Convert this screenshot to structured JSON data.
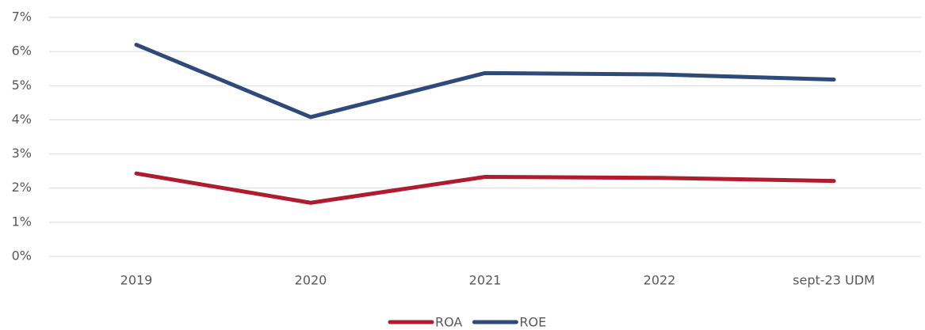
{
  "chart_data": {
    "type": "line",
    "categories": [
      "2019",
      "2020",
      "2021",
      "2022",
      "sept-23 UDM"
    ],
    "series": [
      {
        "name": "ROA",
        "color": "#b01c2e",
        "values": [
          2.43,
          1.57,
          2.33,
          2.3,
          2.21
        ]
      },
      {
        "name": "ROE",
        "color": "#2d4a7a",
        "values": [
          6.2,
          4.08,
          5.37,
          5.33,
          5.18
        ]
      }
    ],
    "ylim": [
      0,
      7
    ],
    "yticks": [
      {
        "value": 0,
        "label": "0%"
      },
      {
        "value": 1,
        "label": "1%"
      },
      {
        "value": 2,
        "label": "2%"
      },
      {
        "value": 3,
        "label": "3%"
      },
      {
        "value": 4,
        "label": "4%"
      },
      {
        "value": 5,
        "label": "5%"
      },
      {
        "value": 6,
        "label": "6%"
      },
      {
        "value": 7,
        "label": "7%"
      }
    ],
    "grid": true
  }
}
